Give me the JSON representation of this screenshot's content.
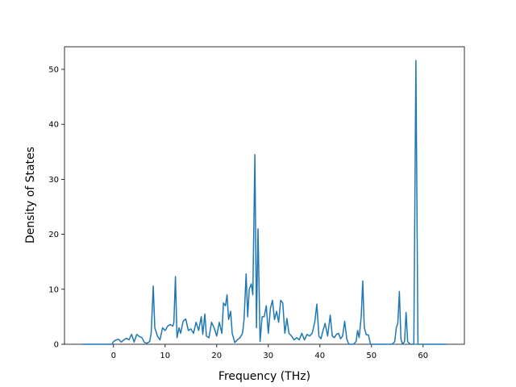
{
  "chart_data": {
    "type": "line",
    "x_label": "Frequency (THz)",
    "y_label": "Density of States",
    "xlim": [
      -9.5,
      68
    ],
    "ylim": [
      0,
      54.1
    ],
    "xticks": [
      0,
      10,
      20,
      30,
      40,
      50,
      60
    ],
    "yticks": [
      0,
      10,
      20,
      30,
      40,
      50
    ],
    "series": [
      {
        "color": "#1f77b4",
        "x": [
          -6,
          -2,
          -0.3,
          0,
          0.5,
          1,
          1.5,
          2,
          2.5,
          3,
          3.5,
          4,
          4.5,
          5,
          5.5,
          6,
          6.5,
          7,
          7.3,
          7.7,
          8,
          8.5,
          9,
          9.5,
          10,
          10.5,
          11,
          11.5,
          11.7,
          12,
          12.3,
          12.7,
          13,
          13.5,
          14,
          14.5,
          15,
          15.5,
          16,
          16.5,
          17,
          17.3,
          17.7,
          18,
          18.5,
          19,
          19.5,
          20,
          20.5,
          21,
          21.3,
          21.7,
          22,
          22.3,
          22.7,
          23,
          23.5,
          24,
          24.5,
          25,
          25.3,
          25.7,
          26,
          26.3,
          26.7,
          27,
          27.4,
          27.7,
          28,
          28.4,
          28.8,
          29.2,
          29.6,
          30,
          30.4,
          30.8,
          31.2,
          31.6,
          32,
          32.4,
          32.8,
          33.2,
          33.6,
          34,
          34.5,
          35,
          35.5,
          36,
          36.5,
          37,
          37.5,
          38,
          38.5,
          39,
          39.4,
          39.8,
          40.2,
          40.6,
          41,
          41.5,
          42,
          42.4,
          42.8,
          43.2,
          43.6,
          44,
          44.4,
          44.8,
          45.2,
          45.6,
          46.5,
          47,
          47.3,
          47.6,
          48,
          48.3,
          48.6,
          49,
          49.4,
          49.8,
          52,
          54,
          54.5,
          54.8,
          55.1,
          55.4,
          55.7,
          56,
          56.4,
          56.7,
          57,
          57.5,
          58.2,
          58.6,
          59,
          59.5,
          64.5
        ],
        "values": [
          0,
          0,
          0,
          0.5,
          0.8,
          0.9,
          0.4,
          0.8,
          1.1,
          0.8,
          1.8,
          0.4,
          1.8,
          1.4,
          1.2,
          0.3,
          0.2,
          0.5,
          2,
          10.6,
          3,
          1.5,
          0.8,
          3,
          2.5,
          3.3,
          3.6,
          3.3,
          4,
          12.3,
          1.2,
          3,
          2,
          4.2,
          4.6,
          2.5,
          2.8,
          2,
          4,
          2.5,
          5,
          1.8,
          5.5,
          1.5,
          1.2,
          4,
          3,
          1.5,
          4,
          2,
          7.5,
          7,
          9,
          4.5,
          6,
          2,
          0.3,
          0.8,
          1.2,
          2,
          4.5,
          12.8,
          5,
          10,
          11,
          9,
          34.5,
          3,
          21,
          0.5,
          5,
          5,
          7,
          2,
          6.5,
          8,
          4.5,
          6,
          4,
          8,
          7.5,
          2,
          4.7,
          2,
          1.5,
          0.8,
          1.2,
          0.8,
          2,
          0.8,
          1.8,
          1.5,
          2,
          4,
          7.3,
          1.5,
          1,
          2.5,
          3.8,
          1.5,
          5.3,
          1.5,
          1.2,
          1.8,
          2,
          1,
          1.5,
          4.2,
          1,
          0,
          0,
          0.5,
          2.5,
          1.2,
          5,
          11.5,
          3,
          1.7,
          1.7,
          0,
          0,
          0,
          0.5,
          3,
          3.8,
          9.6,
          1,
          0,
          0.5,
          5.8,
          0.5,
          0,
          0,
          51.6,
          0,
          0,
          0
        ]
      }
    ]
  }
}
